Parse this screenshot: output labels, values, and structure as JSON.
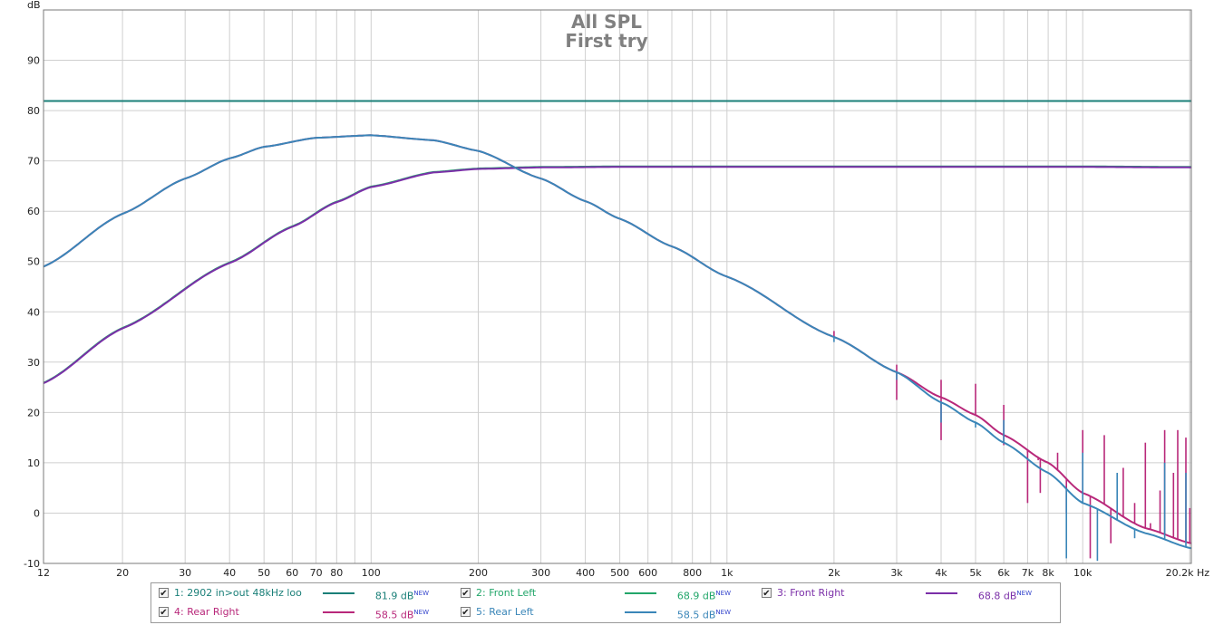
{
  "chart_data": {
    "type": "line",
    "title": "All SPL",
    "subtitle": "First try",
    "ylabel": "dB",
    "xunit": "Hz",
    "xscale": "log",
    "xlim": [
      12,
      20200
    ],
    "ylim": [
      -10,
      100
    ],
    "grid": true,
    "yticks": [
      -10,
      0,
      10,
      20,
      30,
      40,
      50,
      60,
      70,
      80,
      90
    ],
    "xticks": [
      {
        "v": 12,
        "label": "12"
      },
      {
        "v": 20,
        "label": "20"
      },
      {
        "v": 30,
        "label": "30"
      },
      {
        "v": 40,
        "label": "40"
      },
      {
        "v": 50,
        "label": "50"
      },
      {
        "v": 60,
        "label": "60"
      },
      {
        "v": 70,
        "label": "70"
      },
      {
        "v": 80,
        "label": "80"
      },
      {
        "v": 100,
        "label": "100"
      },
      {
        "v": 200,
        "label": "200"
      },
      {
        "v": 300,
        "label": "300"
      },
      {
        "v": 400,
        "label": "400"
      },
      {
        "v": 500,
        "label": "500"
      },
      {
        "v": 600,
        "label": "600"
      },
      {
        "v": 800,
        "label": "800"
      },
      {
        "v": 1000,
        "label": "1k"
      },
      {
        "v": 2000,
        "label": "2k"
      },
      {
        "v": 3000,
        "label": "3k"
      },
      {
        "v": 4000,
        "label": "4k"
      },
      {
        "v": 5000,
        "label": "5k"
      },
      {
        "v": 6000,
        "label": "6k"
      },
      {
        "v": 7000,
        "label": "7k"
      },
      {
        "v": 8000,
        "label": "8k"
      },
      {
        "v": 10000,
        "label": "10k"
      },
      {
        "v": 20200,
        "label": "20.2k Hz"
      }
    ],
    "series": [
      {
        "id": 1,
        "name": "1: 2902 in>out 48kHz loo",
        "color": "#1a7f78",
        "level": "81.9 dB",
        "x": [
          12,
          20200
        ],
        "y": [
          81.9,
          81.9
        ]
      },
      {
        "id": 2,
        "name": "2: Front Left",
        "color": "#22a66a",
        "level": "68.9 dB",
        "x": [
          12,
          20,
          40,
          60,
          80,
          100,
          150,
          200,
          300,
          500,
          1000,
          2000,
          5000,
          10000,
          20200
        ],
        "y": [
          25.9,
          36.8,
          49.8,
          57.0,
          61.9,
          64.9,
          67.8,
          68.5,
          68.8,
          68.9,
          68.9,
          68.9,
          68.9,
          68.9,
          68.8
        ]
      },
      {
        "id": 3,
        "name": "3: Front Right",
        "color": "#7b2fa8",
        "level": "68.8 dB",
        "x": [
          12,
          20,
          40,
          60,
          80,
          100,
          150,
          200,
          300,
          500,
          1000,
          2000,
          5000,
          10000,
          20200
        ],
        "y": [
          25.8,
          36.7,
          49.7,
          56.9,
          61.8,
          64.8,
          67.7,
          68.4,
          68.7,
          68.8,
          68.8,
          68.8,
          68.8,
          68.8,
          68.7
        ]
      },
      {
        "id": 4,
        "name": "4: Rear Right",
        "color": "#b8287a",
        "level": "58.5 dB",
        "x": [
          12,
          20,
          30,
          40,
          50,
          70,
          100,
          150,
          200,
          300,
          400,
          500,
          700,
          1000,
          2000,
          3000,
          4000,
          5000,
          6000,
          8000,
          10000,
          15000,
          20200
        ],
        "y": [
          49.0,
          59.5,
          66.5,
          70.5,
          72.8,
          74.6,
          75.1,
          74.1,
          72.0,
          66.5,
          62.0,
          58.5,
          53.0,
          47.0,
          35.0,
          28.0,
          23.0,
          19.5,
          15.5,
          10.0,
          4.0,
          -3.0,
          -6.0
        ],
        "spikes": [
          [
            2000,
            36.2
          ],
          [
            3000,
            29.5
          ],
          [
            3000,
            22.5
          ],
          [
            4000,
            26.5
          ],
          [
            4000,
            14.5
          ],
          [
            5000,
            25.7
          ],
          [
            6000,
            21.5
          ],
          [
            6000,
            13.5
          ],
          [
            7000,
            12.0
          ],
          [
            7000,
            2.0
          ],
          [
            7500,
            10.5
          ],
          [
            7600,
            4.0
          ],
          [
            8500,
            12.0
          ],
          [
            9000,
            0.0
          ],
          [
            10000,
            16.5
          ],
          [
            10500,
            -9.0
          ],
          [
            11500,
            15.5
          ],
          [
            12000,
            -6.0
          ],
          [
            13000,
            9.0
          ],
          [
            14000,
            2.0
          ],
          [
            15000,
            14.0
          ],
          [
            15500,
            -2.0
          ],
          [
            16500,
            4.5
          ],
          [
            17000,
            16.5
          ],
          [
            18000,
            8.0
          ],
          [
            18500,
            16.5
          ],
          [
            19500,
            15.0
          ],
          [
            20000,
            1.0
          ]
        ]
      },
      {
        "id": 5,
        "name": "5: Rear Left",
        "color": "#3a86b8",
        "level": "58.5 dB",
        "x": [
          12,
          20,
          30,
          40,
          50,
          70,
          100,
          150,
          200,
          300,
          400,
          500,
          700,
          1000,
          2000,
          3000,
          4000,
          5000,
          6000,
          8000,
          10000,
          15000,
          20200
        ],
        "y": [
          49.0,
          59.5,
          66.5,
          70.5,
          72.8,
          74.6,
          75.1,
          74.1,
          72.0,
          66.5,
          62.0,
          58.5,
          53.0,
          47.0,
          35.0,
          28.0,
          22.0,
          18.0,
          14.0,
          8.0,
          2.0,
          -4.0,
          -7.0
        ],
        "spikes": [
          [
            2000,
            34.0
          ],
          [
            3000,
            26.5
          ],
          [
            4000,
            18.0
          ],
          [
            5000,
            17.0
          ],
          [
            6000,
            18.5
          ],
          [
            9000,
            -9.0
          ],
          [
            10000,
            12.0
          ],
          [
            11000,
            -9.5
          ],
          [
            12500,
            8.0
          ],
          [
            14000,
            -5.0
          ],
          [
            17000,
            10.0
          ],
          [
            19500,
            8.0
          ]
        ]
      }
    ]
  },
  "legend": {
    "items": [
      {
        "name": "1: 2902 in>out 48kHz loo",
        "value": "81.9 dB",
        "badge": "NEW",
        "color": "#1a7f78",
        "checked": "✔"
      },
      {
        "name": "2: Front Left",
        "value": "68.9 dB",
        "badge": "NEW",
        "color": "#22a66a",
        "checked": "✔"
      },
      {
        "name": "3: Front Right",
        "value": "68.8 dB",
        "badge": "NEW",
        "color": "#7b2fa8",
        "checked": "✔"
      },
      {
        "name": "4: Rear Right",
        "value": "58.5 dB",
        "badge": "NEW",
        "color": "#b8287a",
        "checked": "✔"
      },
      {
        "name": "5: Rear Left",
        "value": "58.5 dB",
        "badge": "NEW",
        "color": "#3a86b8",
        "checked": "✔"
      }
    ]
  }
}
